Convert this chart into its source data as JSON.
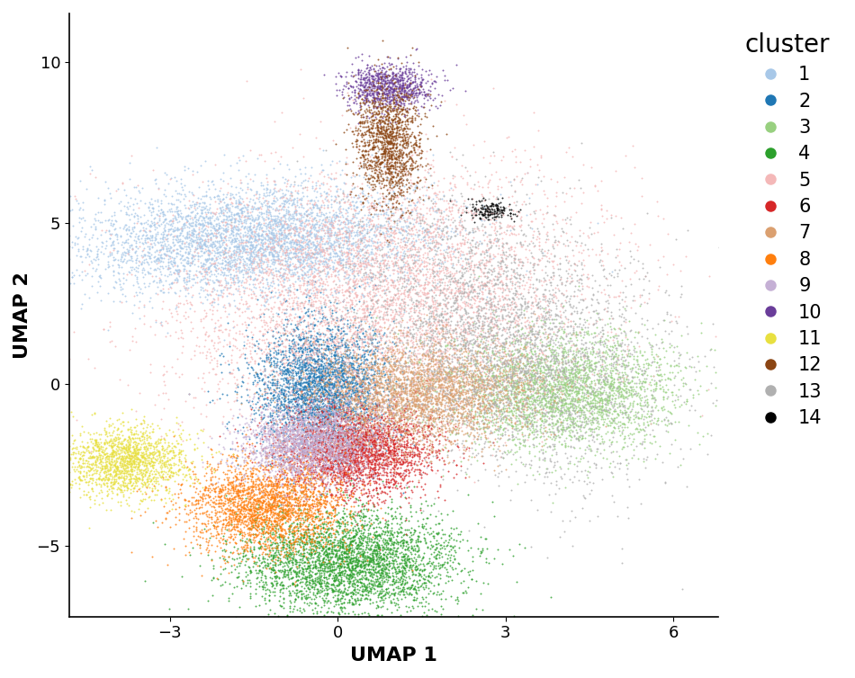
{
  "cluster_colors": {
    "1": "#a8c8e8",
    "2": "#1f77b4",
    "3": "#98d080",
    "4": "#2ca02c",
    "5": "#f4b8b8",
    "6": "#d62728",
    "7": "#dba070",
    "8": "#ff7f0e",
    "9": "#c5b0d5",
    "10": "#6a3d9a",
    "11": "#e8e040",
    "12": "#8b4513",
    "13": "#b0b0b0",
    "14": "#000000"
  },
  "xlim": [
    -4.8,
    6.8
  ],
  "ylim": [
    -7.2,
    11.5
  ],
  "xticks": [
    -3,
    0,
    3,
    6
  ],
  "yticks": [
    -5,
    0,
    5,
    10
  ],
  "xlabel": "UMAP 1",
  "ylabel": "UMAP 2",
  "legend_title": "cluster",
  "point_size": 2.0,
  "point_alpha": 0.8,
  "background_color": "#ffffff"
}
